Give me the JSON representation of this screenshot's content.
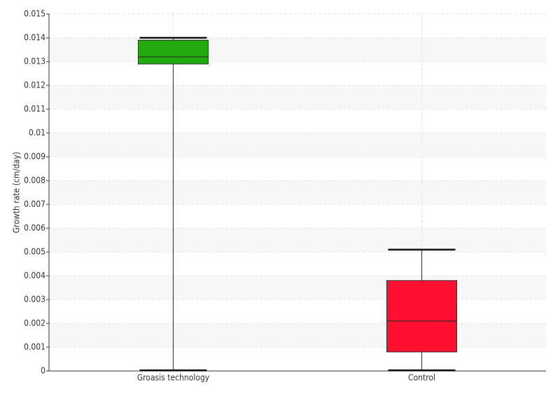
{
  "chart_data": {
    "type": "box",
    "ylabel": "Growth rate (cm/day)",
    "categories": [
      "Groasis technology",
      "Control"
    ],
    "boxes": [
      {
        "min": 0,
        "q1": 0.0129,
        "median": 0.0132,
        "q3": 0.0139,
        "max": 0.014,
        "color": "#22aa0f"
      },
      {
        "min": 0,
        "q1": 0.0008,
        "median": 0.0021,
        "q3": 0.0038,
        "max": 0.0051,
        "color": "#ff1030"
      }
    ],
    "ylim": [
      0,
      0.015
    ],
    "yticks": [
      0,
      0.001,
      0.002,
      0.003,
      0.004,
      0.005,
      0.006,
      0.007,
      0.008,
      0.009,
      0.01,
      0.011,
      0.012,
      0.013,
      0.014,
      0.015
    ],
    "grid": true
  }
}
